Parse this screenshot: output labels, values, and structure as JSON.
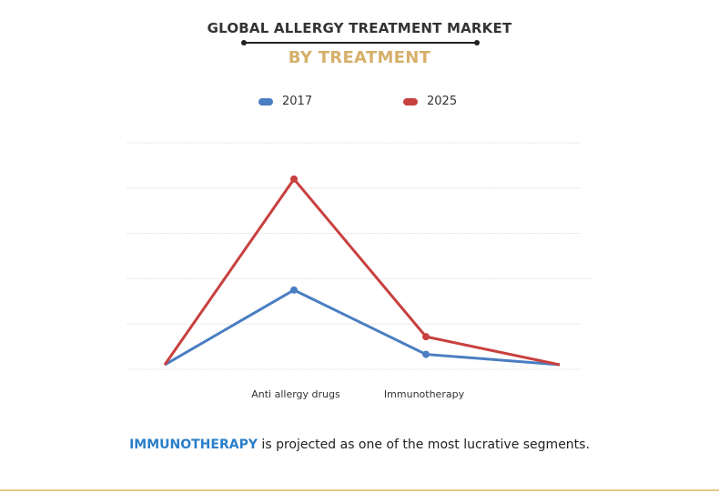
{
  "title": "GLOBAL ALLERGY TREATMENT MARKET",
  "subtitle": "BY TREATMENT",
  "chart_data": {
    "type": "line",
    "categories": [
      "",
      "Anti allergy drugs",
      "Immunotherapy",
      ""
    ],
    "series": [
      {
        "name": "2017",
        "color": "#4a7ec2",
        "values": [
          1,
          17.5,
          3.3,
          1
        ]
      },
      {
        "name": "2025",
        "color": "#c8403f",
        "values": [
          1,
          42,
          7.2,
          1
        ]
      }
    ],
    "ylim": [
      0,
      50
    ],
    "grid": true,
    "legend_position": "top"
  },
  "footer": {
    "highlight": "IMMUNOTHERAPY",
    "text": " is projected as one of the most lucrative segments."
  }
}
